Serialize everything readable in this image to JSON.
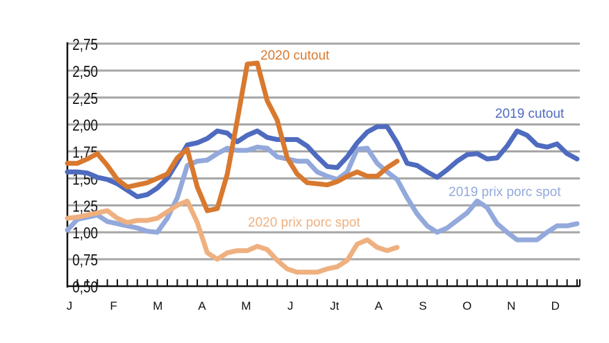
{
  "chart_data": {
    "type": "line",
    "title": "",
    "xlabel": "",
    "ylabel": "",
    "ylim": [
      0.5,
      2.75
    ],
    "yticks": [
      "0,50",
      "0,75",
      "1,00",
      "1,25",
      "1,50",
      "1,75",
      "2,00",
      "2,25",
      "2,50",
      "2,75"
    ],
    "ytick_values": [
      0.5,
      0.75,
      1.0,
      1.25,
      1.5,
      1.75,
      2.0,
      2.25,
      2.5,
      2.75
    ],
    "xticks": [
      "J",
      "F",
      "M",
      "A",
      "M",
      "J",
      "Jt",
      "A",
      "S",
      "O",
      "N",
      "D"
    ],
    "x_unit": "week",
    "grid": true,
    "series": [
      {
        "name": "2019 cutout",
        "color": "#4e6bbf",
        "values": [
          1.56,
          1.56,
          1.55,
          1.51,
          1.49,
          1.45,
          1.39,
          1.33,
          1.35,
          1.41,
          1.5,
          1.65,
          1.81,
          1.83,
          1.87,
          1.94,
          1.92,
          1.84,
          1.9,
          1.94,
          1.88,
          1.86,
          1.86,
          1.86,
          1.8,
          1.7,
          1.61,
          1.6,
          1.7,
          1.83,
          1.93,
          1.98,
          1.98,
          1.83,
          1.64,
          1.62,
          1.56,
          1.51,
          1.58,
          1.66,
          1.72,
          1.73,
          1.68,
          1.69,
          1.8,
          1.94,
          1.9,
          1.81,
          1.79,
          1.82,
          1.73,
          1.68
        ]
      },
      {
        "name": "2019 prix porc spot",
        "color": "#93a9dc",
        "values": [
          1.02,
          1.12,
          1.14,
          1.16,
          1.1,
          1.08,
          1.06,
          1.04,
          1.01,
          1.0,
          1.13,
          1.32,
          1.62,
          1.66,
          1.67,
          1.73,
          1.78,
          1.76,
          1.76,
          1.79,
          1.78,
          1.7,
          1.68,
          1.66,
          1.66,
          1.56,
          1.52,
          1.49,
          1.56,
          1.77,
          1.78,
          1.64,
          1.56,
          1.49,
          1.32,
          1.17,
          1.06,
          1.0,
          1.04,
          1.11,
          1.18,
          1.29,
          1.23,
          1.08,
          1.0,
          0.93,
          0.93,
          0.93,
          1.0,
          1.06,
          1.06,
          1.08
        ]
      },
      {
        "name": "2020 cutout",
        "color": "#d8792f",
        "values": [
          1.64,
          1.64,
          1.68,
          1.73,
          1.62,
          1.49,
          1.42,
          1.44,
          1.46,
          1.5,
          1.54,
          1.69,
          1.77,
          1.42,
          1.2,
          1.22,
          1.54,
          2.04,
          2.56,
          2.57,
          2.22,
          2.04,
          1.69,
          1.54,
          1.46,
          1.45,
          1.44,
          1.47,
          1.52,
          1.56,
          1.52,
          1.52,
          1.6,
          1.66
        ]
      },
      {
        "name": "2020 prix porc spot",
        "color": "#efb07f",
        "values": [
          1.13,
          1.14,
          1.16,
          1.18,
          1.2,
          1.13,
          1.09,
          1.11,
          1.11,
          1.13,
          1.19,
          1.25,
          1.29,
          1.09,
          0.81,
          0.75,
          0.81,
          0.83,
          0.83,
          0.87,
          0.84,
          0.74,
          0.66,
          0.63,
          0.63,
          0.63,
          0.66,
          0.68,
          0.74,
          0.89,
          0.93,
          0.86,
          0.83,
          0.86
        ]
      }
    ]
  }
}
